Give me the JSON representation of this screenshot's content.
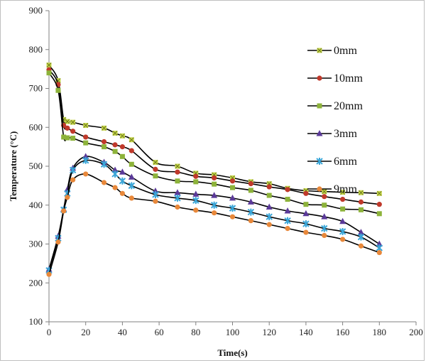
{
  "chart_data": {
    "type": "line",
    "title": "",
    "xlabel": "Time(s)",
    "ylabel": "Temperature (°C)",
    "xlim": [
      0,
      200
    ],
    "ylim": [
      100,
      900
    ],
    "xticks": [
      0,
      20,
      40,
      60,
      80,
      100,
      120,
      140,
      160,
      180,
      200
    ],
    "yticks": [
      100,
      200,
      300,
      400,
      500,
      600,
      700,
      800,
      900
    ],
    "grid": false,
    "legend_position": "right",
    "series": [
      {
        "name": "0mm",
        "color": "#c8d84a",
        "marker": "x",
        "x": [
          0,
          5,
          8,
          10,
          13,
          20,
          30,
          36,
          40,
          45,
          58,
          70,
          80,
          90,
          100,
          110,
          120,
          130,
          140,
          150,
          160,
          170,
          180
        ],
        "y": [
          760,
          720,
          620,
          615,
          613,
          605,
          598,
          585,
          578,
          568,
          510,
          500,
          482,
          478,
          470,
          460,
          455,
          443,
          437,
          435,
          433,
          432,
          430
        ]
      },
      {
        "name": "10mm",
        "color": "#c0392b",
        "marker": "circle",
        "x": [
          0,
          5,
          8,
          10,
          13,
          20,
          30,
          36,
          40,
          45,
          58,
          70,
          80,
          90,
          100,
          110,
          120,
          130,
          140,
          150,
          160,
          170,
          180
        ],
        "y": [
          748,
          710,
          605,
          598,
          590,
          575,
          563,
          555,
          550,
          540,
          492,
          485,
          474,
          470,
          462,
          455,
          447,
          440,
          430,
          422,
          415,
          408,
          402
        ]
      },
      {
        "name": "20mm",
        "color": "#8db33a",
        "marker": "square",
        "x": [
          0,
          5,
          8,
          10,
          13,
          20,
          30,
          36,
          40,
          45,
          58,
          70,
          80,
          90,
          100,
          110,
          120,
          130,
          140,
          150,
          160,
          170,
          180
        ],
        "y": [
          740,
          695,
          575,
          573,
          572,
          560,
          550,
          538,
          525,
          505,
          475,
          462,
          460,
          454,
          445,
          438,
          425,
          415,
          402,
          400,
          390,
          388,
          378
        ]
      },
      {
        "name": "3mm",
        "color": "#5b3a99",
        "marker": "triangle",
        "x": [
          0,
          5,
          8,
          10,
          13,
          20,
          30,
          36,
          40,
          45,
          58,
          70,
          80,
          90,
          100,
          110,
          120,
          130,
          140,
          150,
          160,
          170,
          180
        ],
        "y": [
          235,
          320,
          390,
          440,
          495,
          525,
          510,
          490,
          485,
          472,
          436,
          432,
          428,
          425,
          418,
          408,
          395,
          385,
          378,
          370,
          358,
          330,
          300
        ]
      },
      {
        "name": "6mm",
        "color": "#3aa6d8",
        "marker": "x-star",
        "x": [
          0,
          5,
          8,
          10,
          13,
          20,
          30,
          36,
          40,
          45,
          58,
          70,
          80,
          90,
          100,
          110,
          120,
          130,
          140,
          150,
          160,
          170,
          180
        ],
        "y": [
          232,
          315,
          388,
          430,
          490,
          515,
          505,
          480,
          462,
          450,
          427,
          418,
          412,
          400,
          392,
          382,
          370,
          360,
          352,
          340,
          332,
          318,
          290
        ]
      },
      {
        "name": "9mm",
        "color": "#e8883a",
        "marker": "circle",
        "x": [
          0,
          5,
          8,
          10,
          13,
          20,
          30,
          36,
          40,
          45,
          58,
          70,
          80,
          90,
          100,
          110,
          120,
          130,
          140,
          150,
          160,
          170,
          180
        ],
        "y": [
          222,
          305,
          385,
          420,
          465,
          480,
          458,
          445,
          430,
          418,
          410,
          395,
          387,
          380,
          370,
          360,
          350,
          340,
          330,
          322,
          312,
          295,
          278
        ]
      }
    ]
  }
}
